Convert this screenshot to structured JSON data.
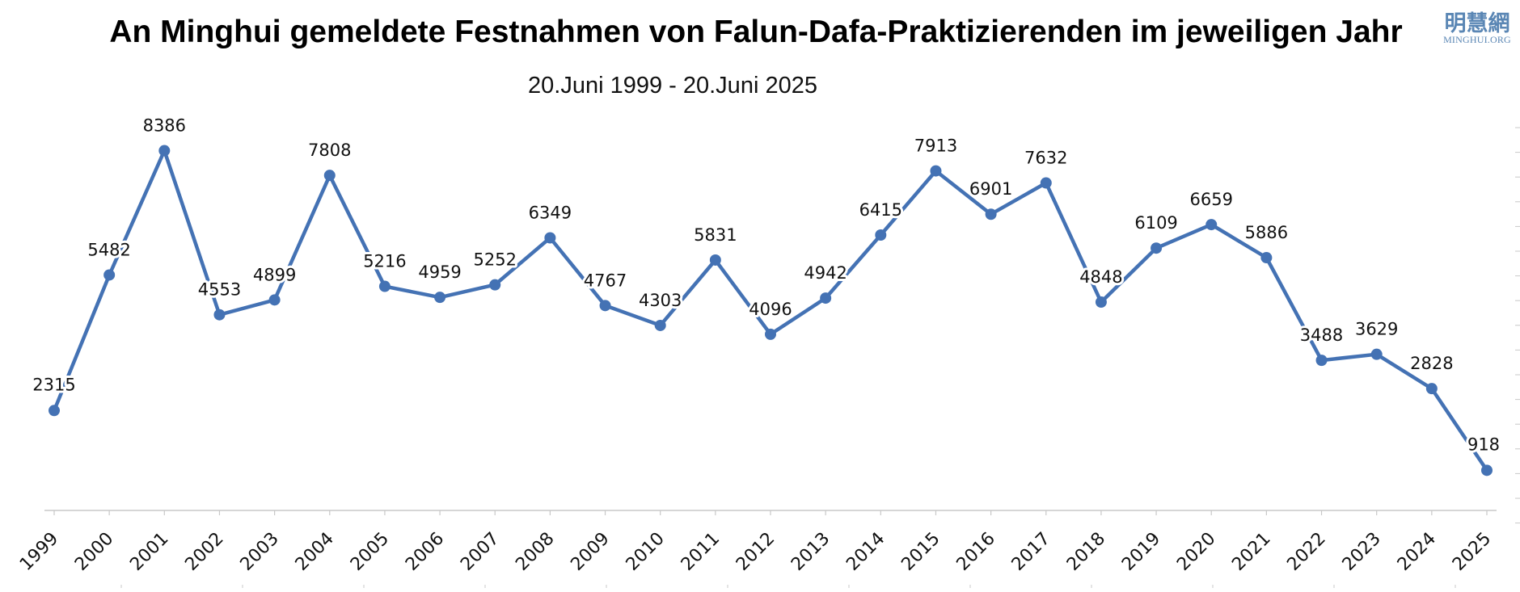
{
  "header": {
    "title": "An Minghui gemeldete Festnahmen von Falun-Dafa-Praktizierenden im jeweiligen Jahr",
    "subtitle": "20.Juni 1999 - 20.Juni 2025"
  },
  "logo": {
    "chinese": "明慧網",
    "latin": "MINGHUI.ORG"
  },
  "colors": {
    "series": "#4472b4",
    "axis": "#c8c8c8",
    "logo": "#5a86b4",
    "background": "#ffffff"
  },
  "chart_data": {
    "type": "line",
    "title": "An Minghui gemeldete Festnahmen von Falun-Dafa-Praktizierenden im jeweiligen Jahr",
    "subtitle": "20.Juni 1999 - 20.Juni 2025",
    "xlabel": "",
    "ylabel": "",
    "categories": [
      "1999",
      "2000",
      "2001",
      "2002",
      "2003",
      "2004",
      "2005",
      "2006",
      "2007",
      "2008",
      "2009",
      "2010",
      "2011",
      "2012",
      "2013",
      "2014",
      "2015",
      "2016",
      "2017",
      "2018",
      "2019",
      "2020",
      "2021",
      "2022",
      "2023",
      "2024",
      "2025"
    ],
    "series": [
      {
        "values": [
          2315,
          5482,
          8386,
          4553,
          4899,
          7808,
          5216,
          4959,
          5252,
          6349,
          4767,
          4303,
          5831,
          4096,
          4942,
          6415,
          7913,
          6901,
          7632,
          4848,
          6109,
          6659,
          5886,
          3488,
          3629,
          2828,
          918
        ]
      }
    ],
    "data_labels": [
      "2315",
      "5482",
      "8386",
      "4553",
      "4899",
      "7808",
      "5216",
      "4959",
      "5252",
      "6349",
      "4767",
      "4303",
      "5831",
      "4096",
      "4942",
      "6415",
      "7913",
      "6901",
      "7632",
      "4848",
      "6109",
      "6659",
      "5886",
      "3488",
      "3629",
      "2828",
      "918"
    ],
    "ylim": [
      0,
      9000
    ],
    "grid": false,
    "legend": "none",
    "markers": true
  }
}
